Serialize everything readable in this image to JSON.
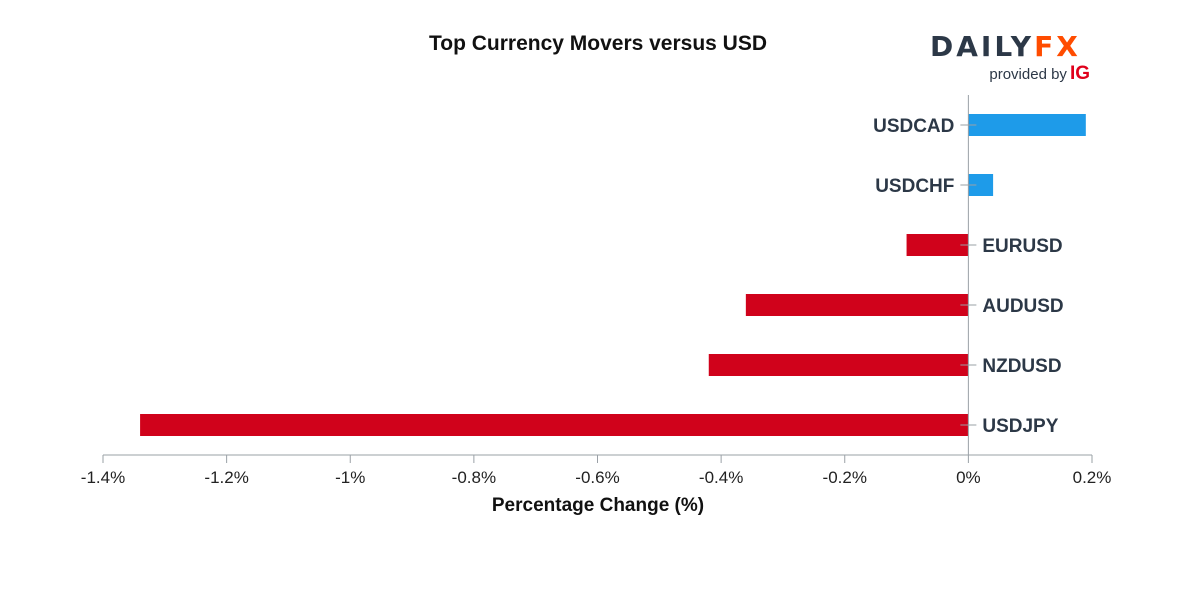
{
  "chart_data": {
    "type": "bar",
    "orientation": "horizontal",
    "title": "Top Currency Movers versus USD",
    "xlabel": "Percentage Change (%)",
    "ylabel": "",
    "categories": [
      "USDCAD",
      "USDCHF",
      "EURUSD",
      "AUDUSD",
      "NZDUSD",
      "USDJPY"
    ],
    "values": [
      0.19,
      0.04,
      -0.1,
      -0.36,
      -0.42,
      -1.34
    ],
    "xlim": [
      -1.4,
      0.2
    ],
    "xticks": [
      -1.4,
      -1.2,
      -1,
      -0.8,
      -0.6,
      -0.4,
      -0.2,
      0,
      0.2
    ],
    "xtick_labels": [
      "-1.4%",
      "-1.2%",
      "-1%",
      "-0.8%",
      "-0.6%",
      "-0.4%",
      "-0.2%",
      "0%",
      "0.2%"
    ],
    "grid": false,
    "colors": {
      "positive": "#1e9be9",
      "negative": "#d0021b",
      "axis": "#9aa0a6",
      "label": "#2c3847"
    }
  },
  "branding": {
    "logo_text_main": "DAILY",
    "logo_text_accent": "FX",
    "provided_by": "provided by",
    "provider": "IG"
  }
}
